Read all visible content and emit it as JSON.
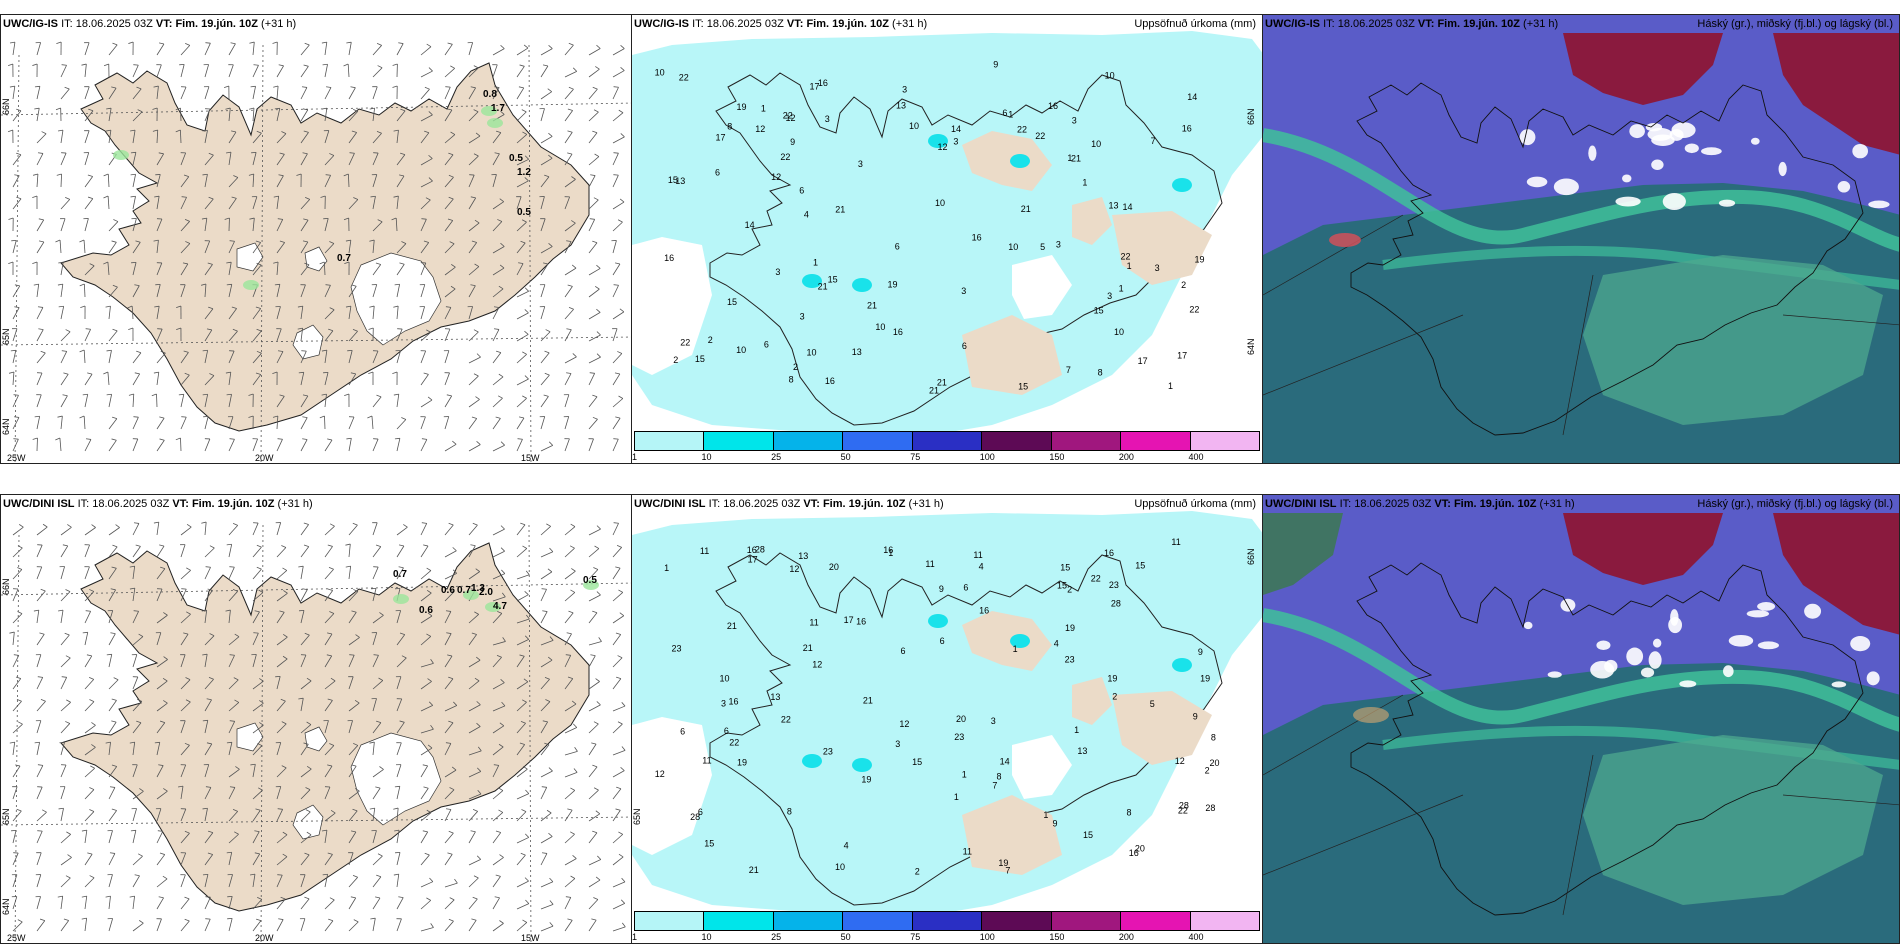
{
  "rows": [
    {
      "model": "UWC/IG-IS",
      "it_label": "IT:",
      "it_value": "18.06.2025 03Z",
      "vt_label": "VT:",
      "vt_value": "Fim. 19.jún. 10Z",
      "lead": "(+31 h)",
      "wind_labels": [
        "0.8",
        "1.7",
        "0.5",
        "1.2",
        "0.5",
        "0.7"
      ],
      "precip_labels": [
        "1",
        "2",
        "3",
        "4",
        "5",
        "6",
        "7",
        "8",
        "9",
        "10",
        "12",
        "13",
        "14",
        "15",
        "16",
        "17",
        "19",
        "21",
        "22"
      ],
      "lat_labels": [
        "66N",
        "65N",
        "64N"
      ],
      "lon_labels": [
        "25W",
        "20W",
        "15W"
      ]
    },
    {
      "model": "UWC/DINI ISL",
      "it_label": "IT:",
      "it_value": "18.06.2025 03Z",
      "vt_label": "VT:",
      "vt_value": "Fim. 19.jún. 10Z",
      "lead": "(+31 h)",
      "wind_labels": [
        "0.7",
        "0.6",
        "0.7",
        "1.3",
        "2.0",
        "4.7",
        "0.6",
        "0.5"
      ],
      "precip_labels": [
        "1",
        "2",
        "3",
        "4",
        "5",
        "6",
        "7",
        "8",
        "9",
        "10",
        "11",
        "12",
        "13",
        "14",
        "15",
        "16",
        "17",
        "19",
        "20",
        "21",
        "22",
        "23",
        "28"
      ],
      "lat_labels": [
        "66N",
        "65N",
        "64N"
      ],
      "lon_labels": [
        "25W",
        "20W",
        "15W"
      ]
    }
  ],
  "precip_title": "Uppsöfnuð úrkoma (mm)",
  "cloud_title": "Háský (gr.), miðský (fj.bl.) og lágský (bl.)",
  "colorbar": {
    "ticks": [
      "1",
      "10",
      "25",
      "50",
      "75",
      "100",
      "150",
      "200",
      "400"
    ],
    "colors": [
      "#b5f5f7",
      "#00e5ea",
      "#05b3ea",
      "#2f6cf2",
      "#2a2fc4",
      "#5d0a55",
      "#a0177e",
      "#e514b2",
      "#f2b5f2"
    ]
  },
  "colors": {
    "land": "#ebdbc8",
    "precip_light": "#b8f6f8",
    "precip_mid": "#19e2ea",
    "cloud_high": "#8a1a3e",
    "cloud_mid": "#5a5cc8",
    "cloud_low": "#2a6b7c",
    "cloud_lowgreen": "#3fbf9a"
  }
}
